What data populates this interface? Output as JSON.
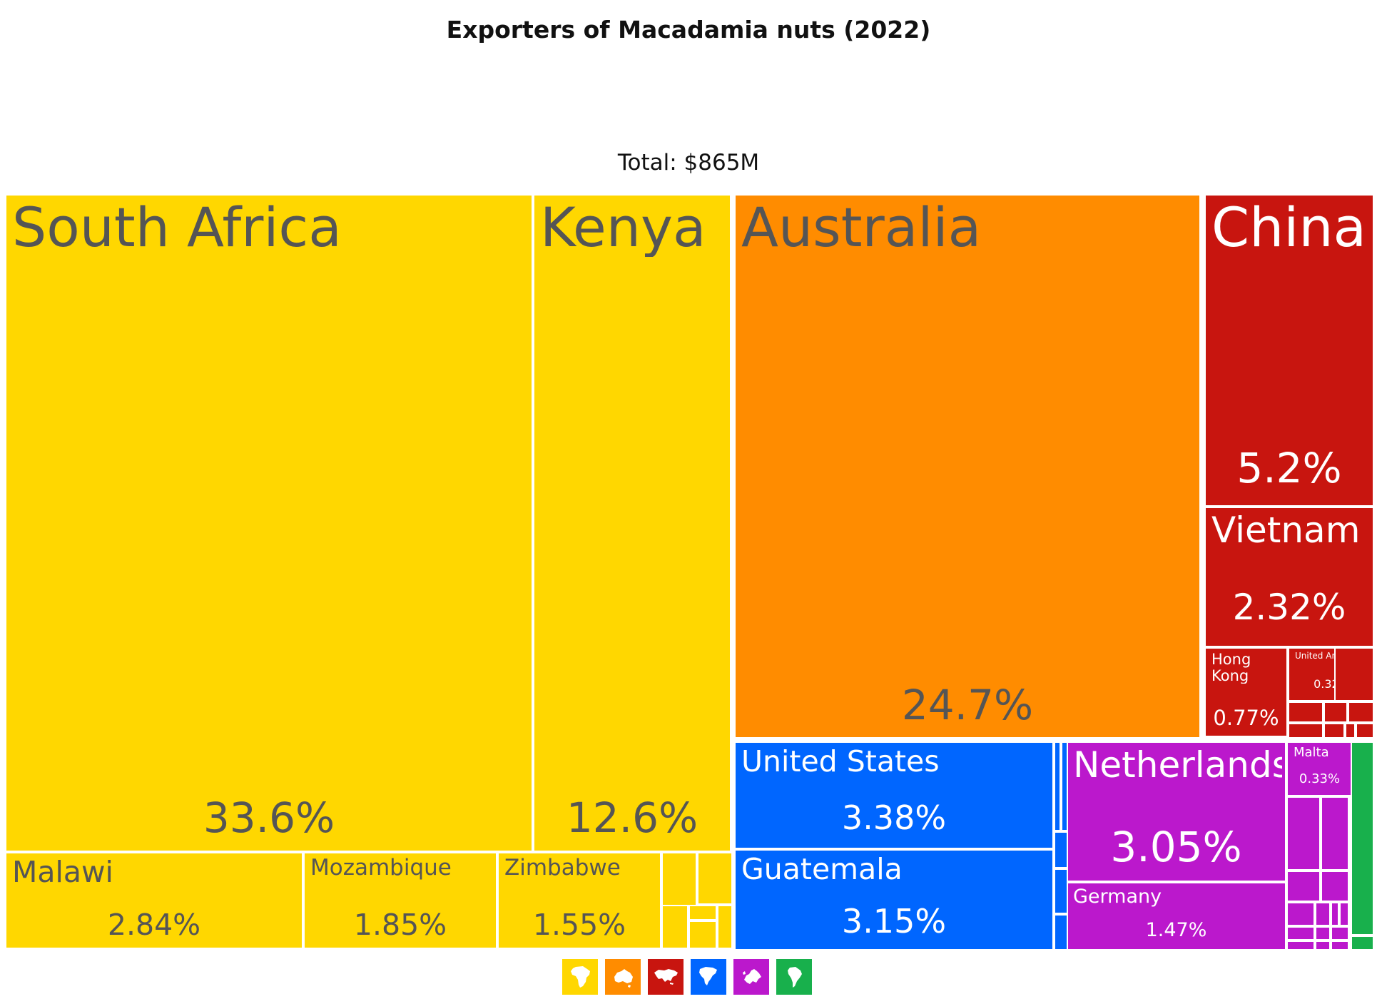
{
  "chart_data": {
    "type": "treemap",
    "title": "Exporters of Macadamia nuts (2022)",
    "subtitle": "Total: $865M",
    "regions": [
      {
        "name": "Africa",
        "color": "#FFD700",
        "text_color": "#555555",
        "icon": "africa-icon"
      },
      {
        "name": "Oceania",
        "color": "#FF8C00",
        "text_color": "#555555",
        "icon": "oceania-icon"
      },
      {
        "name": "Asia",
        "color": "#C8150F",
        "text_color": "#ffffff",
        "icon": "asia-icon"
      },
      {
        "name": "North America",
        "color": "#0066FF",
        "text_color": "#ffffff",
        "icon": "north-america-icon"
      },
      {
        "name": "Europe",
        "color": "#BB18CC",
        "text_color": "#ffffff",
        "icon": "europe-icon"
      },
      {
        "name": "South America",
        "color": "#18B04C",
        "text_color": "#ffffff",
        "icon": "south-america-icon"
      }
    ],
    "items": [
      {
        "name": "South Africa",
        "value": "33.6%",
        "region": "Africa"
      },
      {
        "name": "Kenya",
        "value": "12.6%",
        "region": "Africa"
      },
      {
        "name": "Malawi",
        "value": "2.84%",
        "region": "Africa"
      },
      {
        "name": "Mozambique",
        "value": "1.85%",
        "region": "Africa"
      },
      {
        "name": "Zimbabwe",
        "value": "1.55%",
        "region": "Africa"
      },
      {
        "name": "Australia",
        "value": "24.7%",
        "region": "Oceania"
      },
      {
        "name": "China",
        "value": "5.2%",
        "region": "Asia"
      },
      {
        "name": "Vietnam",
        "value": "2.32%",
        "region": "Asia"
      },
      {
        "name": "Hong Kong",
        "value": "0.77%",
        "region": "Asia"
      },
      {
        "name": "United Arab...",
        "value": "0.32%",
        "region": "Asia"
      },
      {
        "name": "United States",
        "value": "3.38%",
        "region": "North America"
      },
      {
        "name": "Guatemala",
        "value": "3.15%",
        "region": "North America"
      },
      {
        "name": "Netherlands",
        "value": "3.05%",
        "region": "Europe"
      },
      {
        "name": "Germany",
        "value": "1.47%",
        "region": "Europe"
      },
      {
        "name": "Malta",
        "value": "0.33%",
        "region": "Europe"
      }
    ],
    "unlabeled_tiles": {
      "Africa": 6,
      "Asia": 8,
      "North America": 5,
      "Europe": 14,
      "South America": 2
    }
  }
}
